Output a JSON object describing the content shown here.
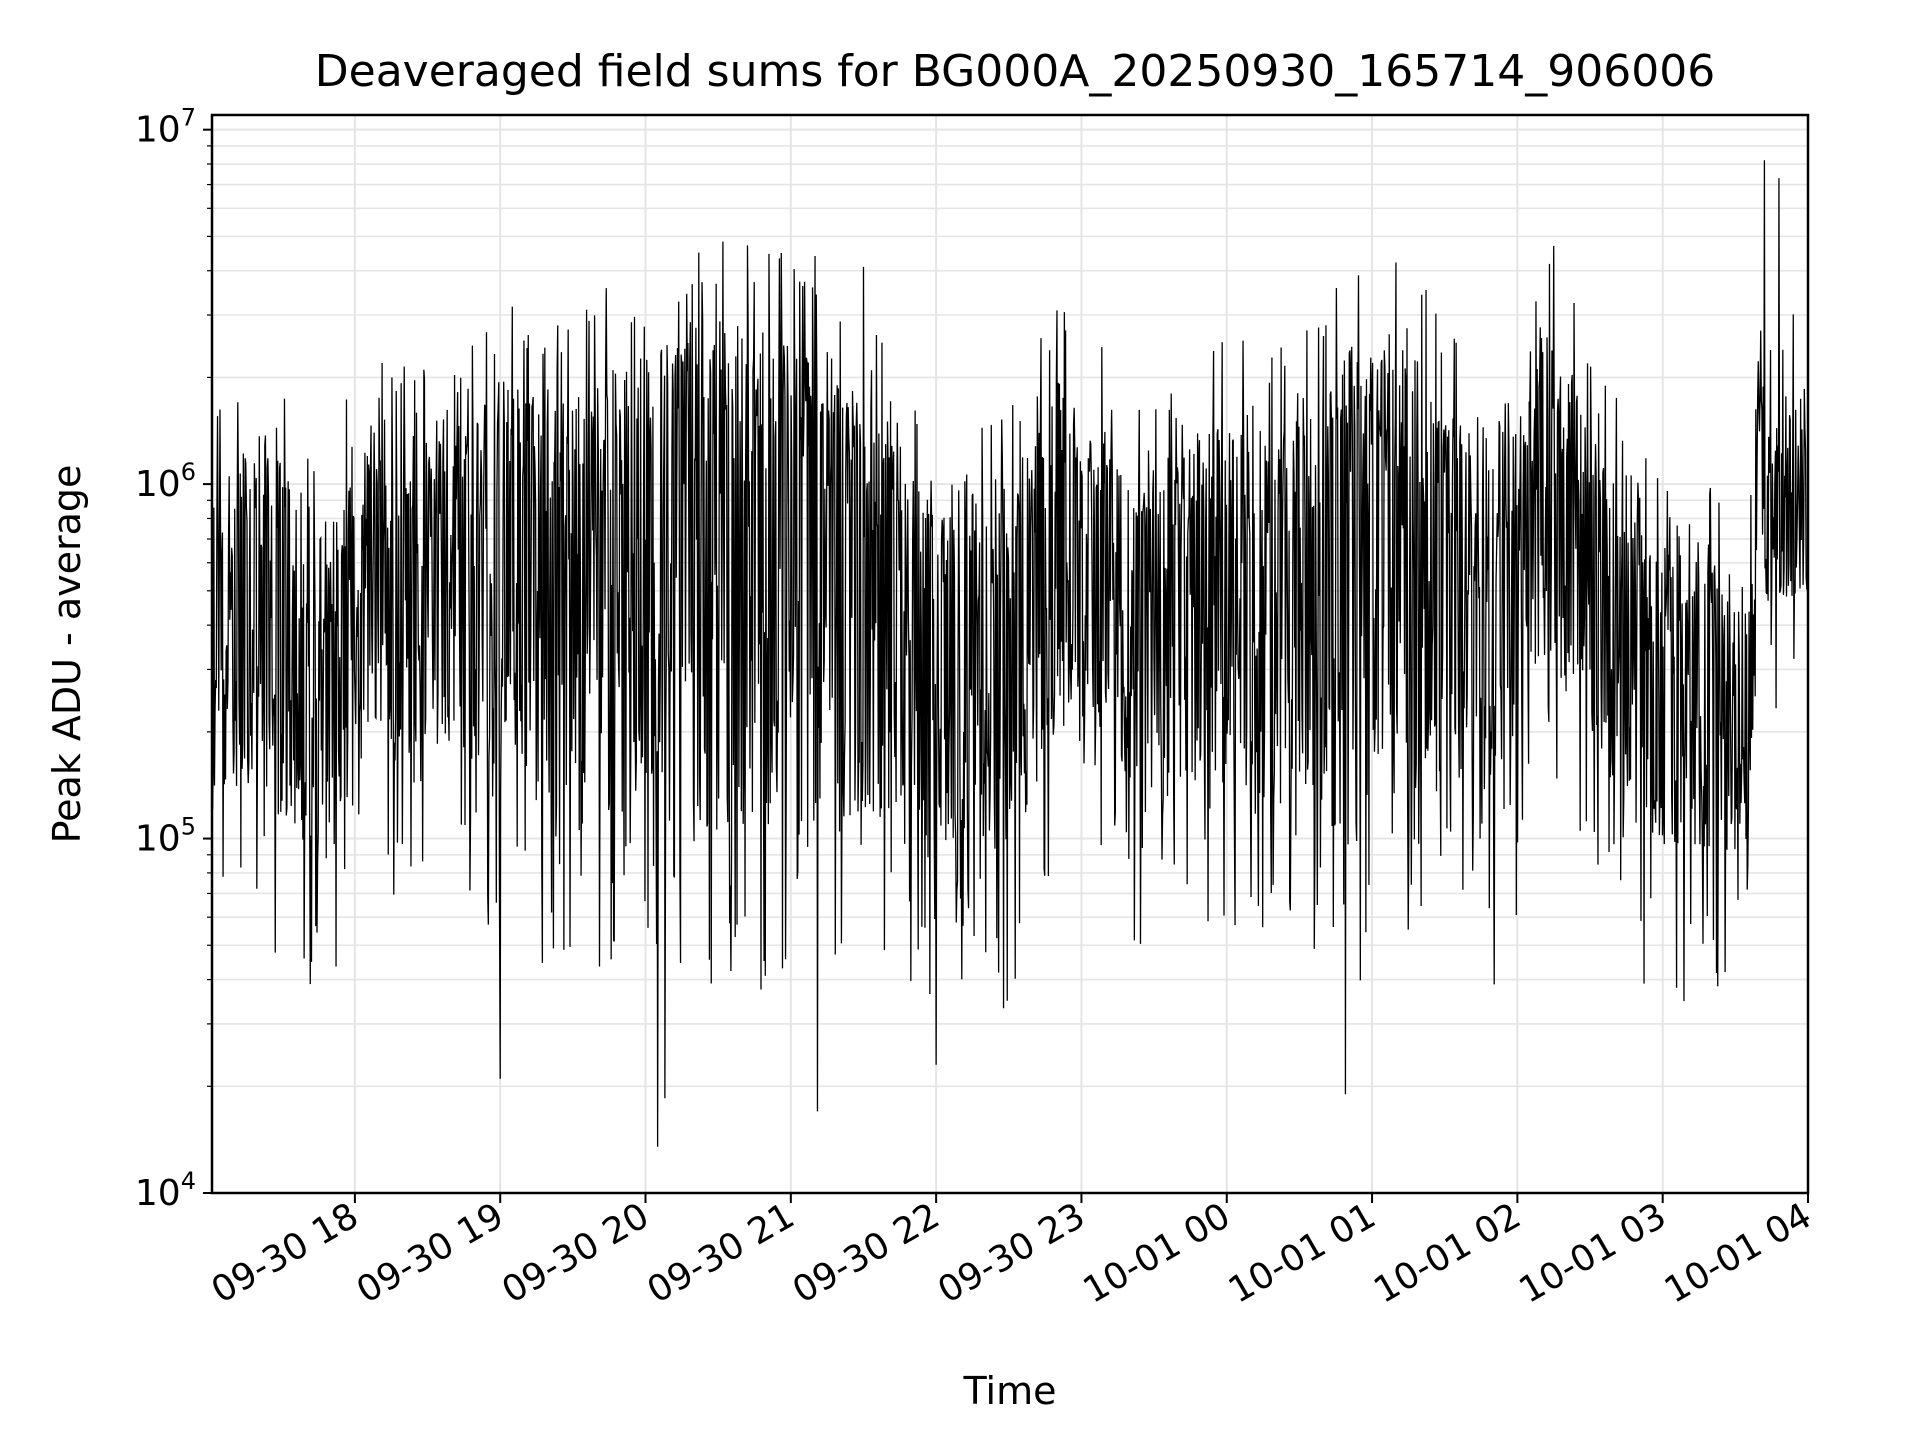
{
  "chart_data": {
    "type": "line",
    "title": "Deaveraged field sums for BG000A_20250930_165714_906006",
    "xlabel": "Time",
    "ylabel": "Peak ADU - average",
    "yscale": "log",
    "ylim": [
      10000,
      11000000
    ],
    "xlim": [
      "2025-09-30 17:01",
      "2025-10-01 04:00"
    ],
    "grid": true,
    "line_color": "#000000",
    "grid_color": "#e5e5e5",
    "x_ticks": [
      "09-30 18",
      "09-30 19",
      "09-30 20",
      "09-30 21",
      "09-30 22",
      "09-30 23",
      "10-01 00",
      "10-01 01",
      "10-01 02",
      "10-01 03",
      "10-01 04"
    ],
    "y_ticks": [
      {
        "base": "10",
        "exp": "4",
        "value": 10000
      },
      {
        "base": "10",
        "exp": "5",
        "value": 100000
      },
      {
        "base": "10",
        "exp": "6",
        "value": 1000000
      },
      {
        "base": "10",
        "exp": "7",
        "value": 10000000
      }
    ],
    "envelope": {
      "x": [
        "2025-09-30 17:01",
        "2025-09-30 17:20",
        "2025-09-30 17:40",
        "2025-09-30 17:50",
        "2025-09-30 18:00",
        "2025-09-30 18:30",
        "2025-09-30 19:00",
        "2025-09-30 19:30",
        "2025-09-30 20:00",
        "2025-09-30 20:30",
        "2025-09-30 21:00",
        "2025-09-30 21:30",
        "2025-09-30 22:00",
        "2025-09-30 22:30",
        "2025-09-30 22:50",
        "2025-09-30 23:10",
        "2025-09-30 23:30",
        "2025-09-30 23:50",
        "2025-10-01 00:30",
        "2025-10-01 00:50",
        "2025-10-01 01:10",
        "2025-10-01 01:30",
        "2025-10-01 01:50",
        "2025-10-01 02:10",
        "2025-10-01 02:30",
        "2025-10-01 02:50",
        "2025-10-01 03:20",
        "2025-10-01 03:35",
        "2025-10-01 03:40",
        "2025-10-01 04:00"
      ],
      "typical": [
        400000,
        550000,
        300000,
        280000,
        550000,
        550000,
        700000,
        650000,
        800000,
        900000,
        900000,
        700000,
        400000,
        300000,
        700000,
        600000,
        300000,
        600000,
        450000,
        750000,
        750000,
        650000,
        300000,
        1000000,
        650000,
        300000,
        250000,
        220000,
        700000,
        750000
      ],
      "high": [
        900000,
        1500000,
        900000,
        700000,
        1200000,
        1300000,
        2000000,
        1700000,
        2500000,
        3000000,
        2700000,
        1800000,
        800000,
        900000,
        2000000,
        1400000,
        900000,
        1500000,
        1400000,
        2500000,
        2500000,
        1800000,
        800000,
        3000000,
        1500000,
        700000,
        600000,
        500000,
        1800000,
        1800000
      ],
      "low": [
        120000,
        150000,
        90000,
        80000,
        200000,
        180000,
        150000,
        100000,
        120000,
        100000,
        100000,
        120000,
        100000,
        90000,
        250000,
        200000,
        100000,
        150000,
        120000,
        100000,
        120000,
        150000,
        100000,
        300000,
        200000,
        100000,
        90000,
        90000,
        450000,
        500000
      ]
    },
    "spikes_high": [
      {
        "x": "2025-09-30 20:22",
        "y": 4500000
      },
      {
        "x": "2025-09-30 21:10",
        "y": 4400000
      },
      {
        "x": "2025-09-30 21:30",
        "y": 4100000
      },
      {
        "x": "2025-10-01 02:15",
        "y": 4700000
      },
      {
        "x": "2025-10-01 03:42",
        "y": 8200000
      },
      {
        "x": "2025-10-01 03:48",
        "y": 7300000
      }
    ],
    "spikes_low": [
      {
        "x": "2025-09-30 20:05",
        "y": 13500
      },
      {
        "x": "2025-09-30 20:08",
        "y": 18500
      },
      {
        "x": "2025-09-30 21:11",
        "y": 17000
      },
      {
        "x": "2025-09-30 19:00",
        "y": 21000
      },
      {
        "x": "2025-10-01 00:49",
        "y": 19000
      },
      {
        "x": "2025-09-30 22:00",
        "y": 23000
      }
    ]
  }
}
